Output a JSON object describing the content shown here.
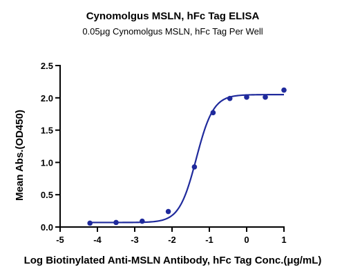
{
  "chart_data": {
    "type": "scatter",
    "title": "Cynomolgus MSLN, hFc Tag ELISA",
    "subtitle": "0.05μg Cynomolgus MSLN, hFc Tag Per Well",
    "xlabel": "Log Biotinylated Anti-MSLN Antibody, hFc Tag Conc.(μg/mL)",
    "ylabel": "Mean Abs.(OD450)",
    "xlim": [
      -5,
      1
    ],
    "ylim": [
      0,
      2.5
    ],
    "xticks": [
      "-5",
      "-4",
      "-3",
      "-2",
      "-1",
      "0",
      "1"
    ],
    "yticks": [
      "0.0",
      "0.5",
      "1.0",
      "1.5",
      "2.0",
      "2.5"
    ],
    "grid": false,
    "legend": "none",
    "colors": {
      "series": "#1f2a9c",
      "axis": "#000000"
    },
    "series": [
      {
        "points": [
          {
            "x": -4.2,
            "y": 0.06
          },
          {
            "x": -3.5,
            "y": 0.07
          },
          {
            "x": -2.8,
            "y": 0.09
          },
          {
            "x": -2.1,
            "y": 0.24
          },
          {
            "x": -1.4,
            "y": 0.93
          },
          {
            "x": -0.9,
            "y": 1.77
          },
          {
            "x": -0.45,
            "y": 1.99
          },
          {
            "x": 0.0,
            "y": 2.01
          },
          {
            "x": 0.5,
            "y": 2.01
          },
          {
            "x": 1.0,
            "y": 2.12
          }
        ],
        "fit": {
          "model": "4PL",
          "bottom": 0.07,
          "top": 2.05,
          "logEC50": -1.35,
          "hill": 1.9,
          "xrange": [
            -4.2,
            1.0
          ]
        }
      }
    ]
  }
}
